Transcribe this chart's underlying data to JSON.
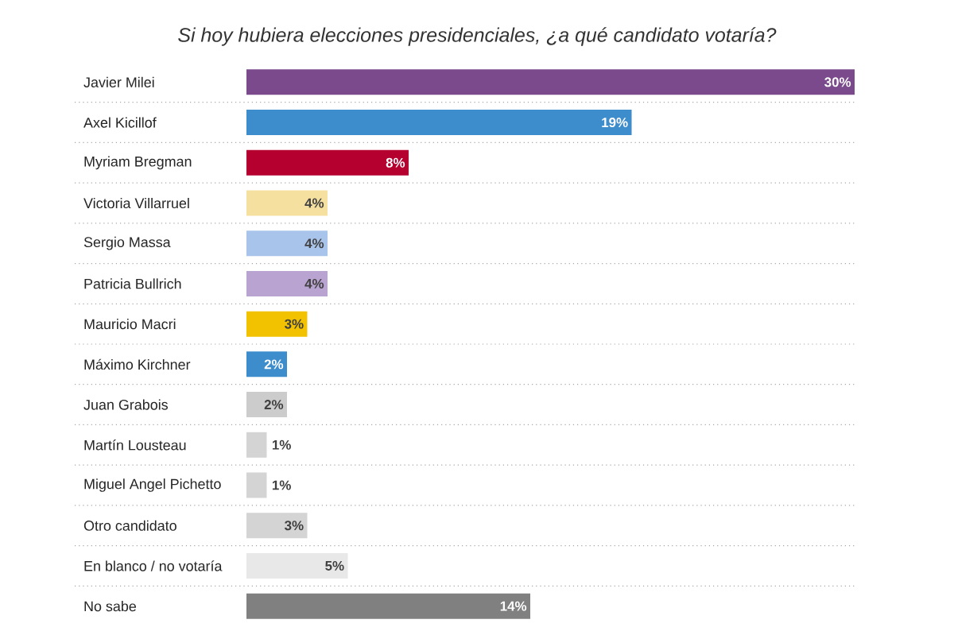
{
  "chart_data": {
    "type": "bar",
    "orientation": "horizontal",
    "title": "Si hoy hubiera elecciones presidenciales, ¿a qué candidato votaría?",
    "categories": [
      "Javier Milei",
      "Axel Kicillof",
      "Myriam Bregman",
      "Victoria Villarruel",
      "Sergio Massa",
      "Patricia Bullrich",
      "Mauricio Macri",
      "Máximo Kirchner",
      "Juan Grabois",
      "Martín Lousteau",
      "Miguel Angel Pichetto",
      "Otro candidato",
      "En blanco / no votaría",
      "No sabe"
    ],
    "values": [
      30,
      19,
      8,
      4,
      4,
      4,
      3,
      2,
      2,
      1,
      1,
      3,
      5,
      14
    ],
    "value_labels": [
      "30%",
      "19%",
      "8%",
      "4%",
      "4%",
      "4%",
      "3%",
      "2%",
      "2%",
      "1%",
      "1%",
      "3%",
      "5%",
      "14%"
    ],
    "colors": [
      "#7b4a8c",
      "#3d8ccc",
      "#b5002f",
      "#f5e0a0",
      "#a9c4ea",
      "#b9a3d0",
      "#f2c200",
      "#3d8ccc",
      "#cccccc",
      "#d4d4d4",
      "#d4d4d4",
      "#d4d4d4",
      "#e8e8e8",
      "#808080"
    ],
    "xlim": [
      0,
      30
    ],
    "grid": "y",
    "tick_labels": "y"
  }
}
